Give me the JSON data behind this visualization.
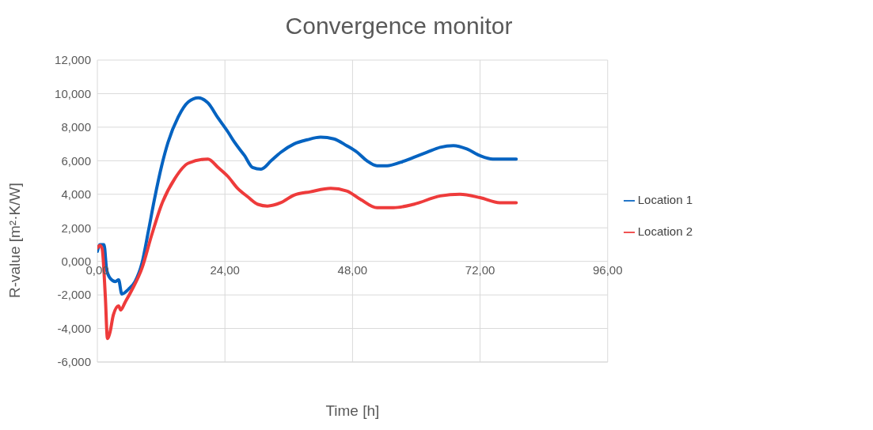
{
  "chart_data": {
    "type": "line",
    "title": "Convergence monitor",
    "xlabel": "Time [h]",
    "ylabel": "R-value [m²·K/W]",
    "xlim": [
      0,
      96
    ],
    "xticks": [
      {
        "value": 0,
        "label": "0,00"
      },
      {
        "value": 24,
        "label": "24,00"
      },
      {
        "value": 48,
        "label": "48,00"
      },
      {
        "value": 72,
        "label": "72,00"
      },
      {
        "value": 96,
        "label": "96,00"
      }
    ],
    "ylim": [
      -6,
      12
    ],
    "yticks": [
      {
        "value": -6,
        "label": "-6,000"
      },
      {
        "value": -4,
        "label": "-4,000"
      },
      {
        "value": -2,
        "label": "-2,000"
      },
      {
        "value": 0,
        "label": "0,000"
      },
      {
        "value": 2,
        "label": "2,000"
      },
      {
        "value": 4,
        "label": "4,000"
      },
      {
        "value": 6,
        "label": "6,000"
      },
      {
        "value": 8,
        "label": "8,000"
      },
      {
        "value": 10,
        "label": "10,000"
      },
      {
        "value": 12,
        "label": "12,000"
      }
    ],
    "grid": true,
    "legend": "right",
    "marker": "none",
    "line_style": "solid",
    "series": [
      {
        "name": "Location 1",
        "color": "#0563c1",
        "x": [
          0,
          0.5,
          1.25,
          1.75,
          2.4,
          3.4,
          4,
          4.6,
          5.9,
          7.1,
          8.4,
          9.6,
          10.8,
          12.1,
          13.3,
          15.2,
          17.1,
          19,
          20.8,
          22.7,
          24.6,
          25.8,
          27.7,
          29.2,
          30.8,
          32.7,
          34.5,
          37,
          39.5,
          42,
          44.5,
          46.9,
          48.9,
          50.7,
          52.6,
          54.5,
          57,
          59.5,
          62,
          64.5,
          67,
          69.5,
          72,
          74.4,
          78.8
        ],
        "values": [
          0.6,
          1.0,
          1.0,
          -0.5,
          -1.0,
          -1.2,
          -1.1,
          -1.95,
          -1.65,
          -1.2,
          -0.1,
          1.8,
          3.8,
          5.7,
          7.1,
          8.6,
          9.5,
          9.75,
          9.45,
          8.55,
          7.7,
          7.1,
          6.3,
          5.6,
          5.5,
          6.0,
          6.5,
          7.0,
          7.25,
          7.4,
          7.3,
          6.9,
          6.5,
          6.0,
          5.7,
          5.7,
          5.9,
          6.2,
          6.5,
          6.8,
          6.9,
          6.7,
          6.3,
          6.1,
          6.1
        ]
      },
      {
        "name": "Location 2",
        "color": "#ee3b3b",
        "x": [
          0,
          0.5,
          0.9,
          1.5,
          1.9,
          2.4,
          3,
          4,
          4.4,
          5.2,
          6.5,
          8.4,
          10.2,
          12.1,
          14.6,
          17.1,
          20.8,
          22.7,
          24.6,
          26.4,
          28.3,
          30.2,
          32,
          34.5,
          37,
          40.1,
          43.9,
          46.9,
          49.5,
          52.6,
          55.7,
          59.5,
          64.5,
          68.2,
          72,
          75.7,
          78.8
        ],
        "values": [
          0.8,
          0.95,
          0.75,
          -2.1,
          -4.6,
          -4.2,
          -3.2,
          -2.65,
          -2.9,
          -2.45,
          -1.7,
          -0.4,
          1.55,
          3.4,
          4.95,
          5.85,
          6.1,
          5.6,
          5.05,
          4.35,
          3.85,
          3.4,
          3.3,
          3.5,
          3.95,
          4.15,
          4.35,
          4.2,
          3.7,
          3.2,
          3.2,
          3.4,
          3.9,
          4.0,
          3.8,
          3.5,
          3.5
        ]
      }
    ]
  }
}
